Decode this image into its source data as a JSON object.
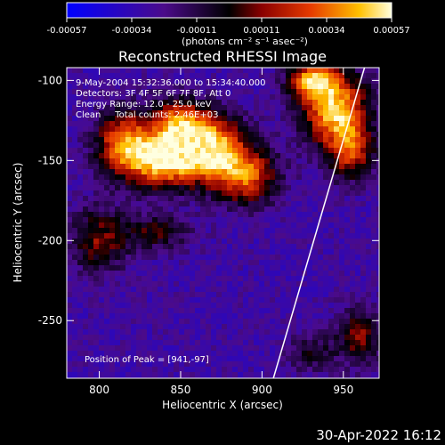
{
  "chart_data": {
    "type": "heatmap",
    "title": "Reconstructed RHESSI Image",
    "xlabel": "Heliocentric X (arcsec)",
    "ylabel": "Heliocentric Y (arcsec)",
    "xlim": [
      780,
      972
    ],
    "ylim": [
      -286,
      -92
    ],
    "xticks": [
      800,
      850,
      900,
      950
    ],
    "yticks": [
      -100,
      -150,
      -200,
      -250
    ],
    "colorbar": {
      "ticks": [
        "-0.00057",
        "-0.00034",
        "-0.00011",
        "0.00011",
        "0.00034",
        "0.00057"
      ],
      "range": [
        -0.00057,
        0.00057
      ],
      "unit_label": "(photons cm⁻² s⁻¹ asec⁻²)"
    },
    "annotations": [
      "9-May-2004 15:32:36.000 to 15:34:40.000",
      "Detectors: 3F 4F 5F 6F 7F 8F, Att 0",
      "Energy Range: 12.0 - 25.0 keV",
      "Clean     Total counts: 2.46E+03"
    ],
    "peak_label": "Position of Peak = [941,-97]",
    "peak": [
      941,
      -97
    ],
    "limb_line": [
      [
        907,
        -286
      ],
      [
        963,
        -92
      ]
    ],
    "sources": [
      {
        "x": 866,
        "y": -142,
        "amp": 1.0,
        "sx": 16,
        "sy": 14
      },
      {
        "x": 838,
        "y": -150,
        "amp": 0.8,
        "sx": 14,
        "sy": 12
      },
      {
        "x": 815,
        "y": -140,
        "amp": 0.75,
        "sx": 12,
        "sy": 14
      },
      {
        "x": 890,
        "y": -160,
        "amp": 0.65,
        "sx": 14,
        "sy": 12
      },
      {
        "x": 848,
        "y": -125,
        "amp": 0.55,
        "sx": 12,
        "sy": 10
      },
      {
        "x": 945,
        "y": -118,
        "amp": 0.9,
        "sx": 14,
        "sy": 16
      },
      {
        "x": 955,
        "y": -145,
        "amp": 0.55,
        "sx": 10,
        "sy": 12
      },
      {
        "x": 930,
        "y": -100,
        "amp": 0.7,
        "sx": 10,
        "sy": 8
      },
      {
        "x": 800,
        "y": -200,
        "amp": 0.45,
        "sx": 12,
        "sy": 14
      },
      {
        "x": 835,
        "y": -195,
        "amp": 0.35,
        "sx": 14,
        "sy": 8
      },
      {
        "x": 960,
        "y": -260,
        "amp": 0.45,
        "sx": 10,
        "sy": 12
      },
      {
        "x": 930,
        "y": -270,
        "amp": 0.3,
        "sx": 10,
        "sy": 8
      }
    ],
    "footer": "30-Apr-2022 16:12"
  }
}
